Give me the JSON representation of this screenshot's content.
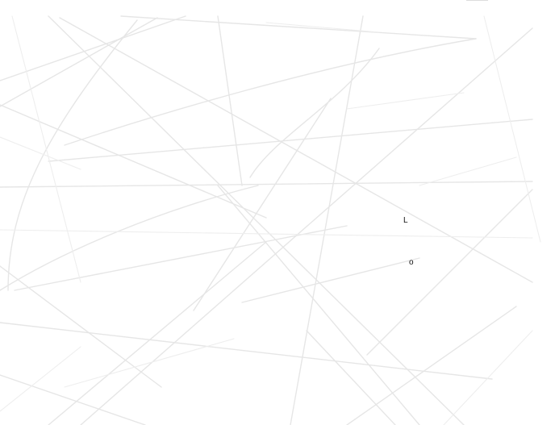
{
  "glyphs": {
    "first": "L",
    "second": "o"
  }
}
